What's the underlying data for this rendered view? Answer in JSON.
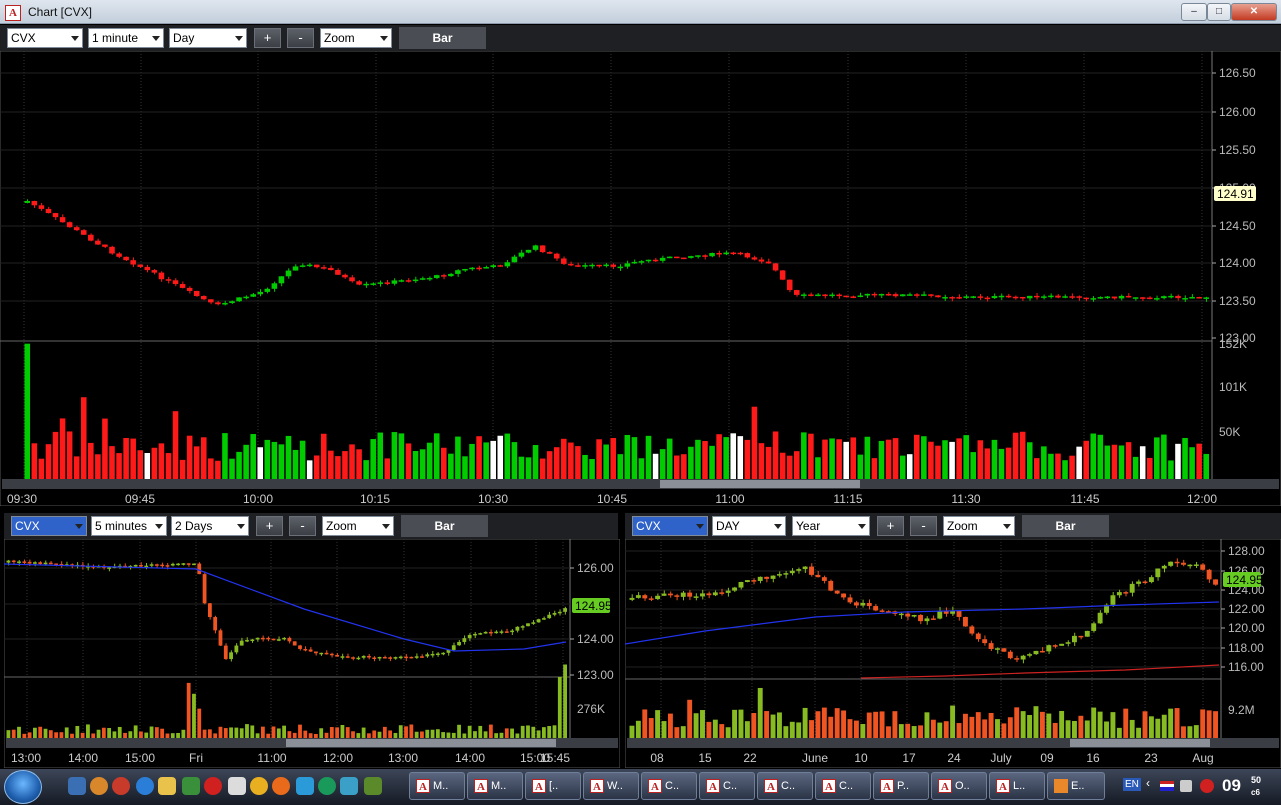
{
  "window": {
    "title": "Chart [CVX]",
    "app_icon": "A"
  },
  "main": {
    "toolbar": {
      "symbol": "CVX",
      "interval": "1 minute",
      "period": "Day",
      "plus": "+",
      "minus": "-",
      "zoom": "Zoom",
      "bar": "Bar"
    },
    "price_ticks": [
      "126.50",
      "126.00",
      "125.50",
      "125.00",
      "124.50",
      "124.00",
      "123.50",
      "123.00"
    ],
    "price_badge": "124.91",
    "volume_ticks": [
      "152K",
      "101K",
      "50K"
    ],
    "time_ticks": [
      "09:30",
      "09:45",
      "10:00",
      "10:15",
      "10:30",
      "10:45",
      "11:00",
      "11:15",
      "11:30",
      "11:45",
      "12:00"
    ]
  },
  "bottom_left": {
    "toolbar": {
      "symbol": "CVX",
      "interval": "5 minutes",
      "period": "2 Days",
      "plus": "+",
      "minus": "-",
      "zoom": "Zoom",
      "bar": "Bar"
    },
    "price_ticks": [
      "126.00",
      "124.00",
      "123.00"
    ],
    "price_badge": "124.95",
    "volume_ticks": [
      "276K"
    ],
    "time_ticks": [
      "13:00",
      "14:00",
      "15:00",
      "Fri",
      "11:00",
      "12:00",
      "13:00",
      "14:00",
      "15:00",
      "15:45"
    ]
  },
  "bottom_right": {
    "toolbar": {
      "symbol": "CVX",
      "interval": "DAY",
      "period": "Year",
      "plus": "+",
      "minus": "-",
      "zoom": "Zoom",
      "bar": "Bar"
    },
    "price_ticks": [
      "128.00",
      "126.00",
      "124.00",
      "122.00",
      "120.00",
      "118.00",
      "116.00"
    ],
    "price_badge": "124.95",
    "volume_ticks": [
      "9.2M"
    ],
    "time_ticks": [
      "08",
      "15",
      "22",
      "June",
      "10",
      "17",
      "24",
      "July",
      "09",
      "16",
      "23",
      "Aug"
    ]
  },
  "colors": {
    "up": "#00cc00",
    "down": "#ff1a1a",
    "ma_blue": "#2233ee",
    "ma_red": "#cc2222",
    "lime_badge": "#66cc22"
  },
  "taskbar": {
    "items": [
      "M..",
      "M..",
      "[..",
      "W..",
      "C..",
      "C..",
      "C..",
      "C..",
      "P..",
      "O..",
      "L..",
      "E.."
    ],
    "tray_lang": "EN",
    "clock": "09",
    "clock_minutes": "50",
    "clock_sub": "c6"
  }
}
